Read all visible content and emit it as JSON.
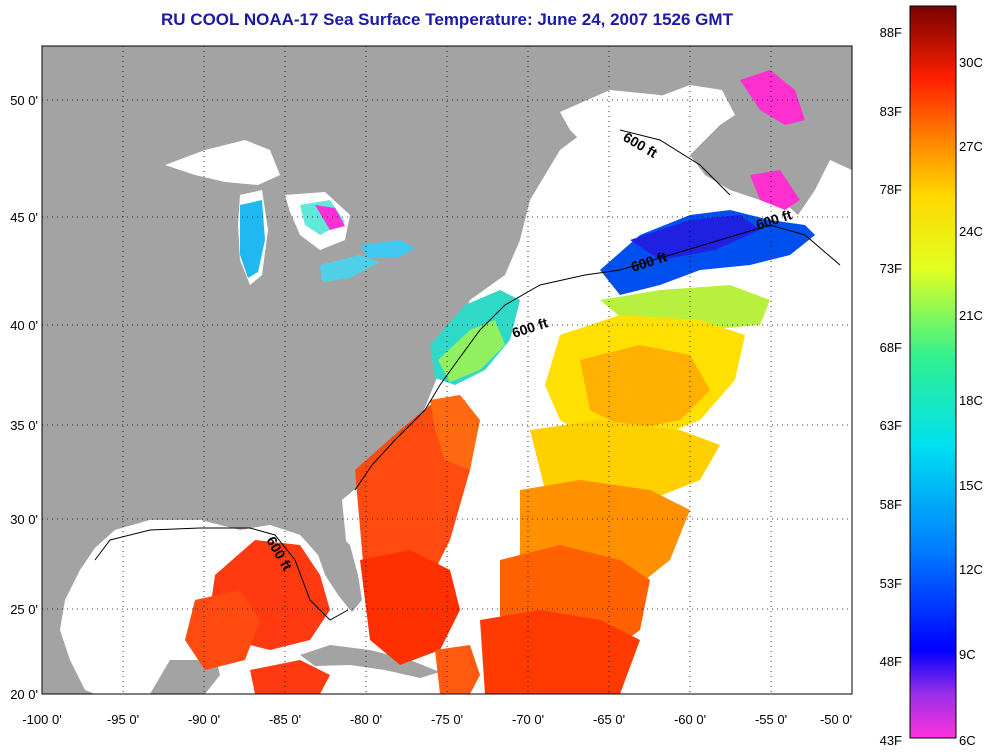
{
  "title": "RU COOL  NOAA-17  Sea Surface Temperature:  June 24, 2007 1526 GMT",
  "map": {
    "lon_ticks": [
      "-100 0'",
      "-95 0'",
      "-90 0'",
      "-85 0'",
      "-80 0'",
      "-75 0'",
      "-70 0'",
      "-65 0'",
      "-60 0'",
      "-55 0'",
      "-50 0'"
    ],
    "lat_ticks": [
      "50 0'",
      "45 0'",
      "40 0'",
      "35 0'",
      "30 0'",
      "25 0'",
      "20 0'"
    ],
    "lon_range": [
      -100,
      -50
    ],
    "lat_range": [
      20,
      52.5
    ],
    "contour_label": "600 ft",
    "colors": {
      "land": "#a3a3a3",
      "cloud": "#ffffff"
    }
  },
  "colorbar": {
    "fahrenheit": [
      "88F",
      "83F",
      "78F",
      "73F",
      "68F",
      "63F",
      "58F",
      "53F",
      "48F",
      "43F"
    ],
    "celsius": [
      "30C",
      "27C",
      "24C",
      "21C",
      "18C",
      "15C",
      "12C",
      "9C",
      "6C"
    ]
  }
}
